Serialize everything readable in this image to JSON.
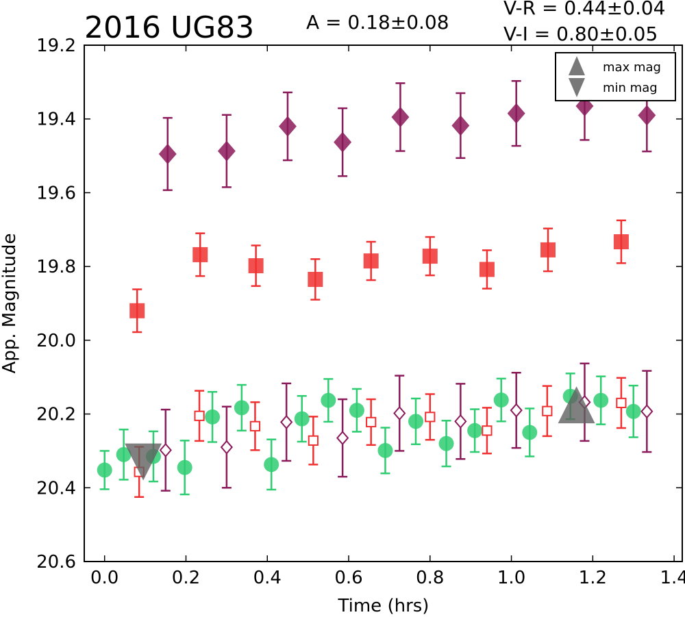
{
  "chart_data": {
    "type": "scatter",
    "title": "2016 UG83",
    "amplitude_label": "A  = 0.18±0.08",
    "color_labels": [
      "V-R = 0.44±0.04",
      "V-I  = 0.80±0.05"
    ],
    "xlabel": "Time (hrs)",
    "ylabel": "App. Magnitude",
    "xlim": [
      -0.05,
      1.42
    ],
    "ylim": [
      20.6,
      19.2
    ],
    "y_inverted": true,
    "xticks": [
      "0.0",
      "0.2",
      "0.4",
      "0.6",
      "0.8",
      "1.0",
      "1.2",
      "1.4"
    ],
    "xtick_values": [
      0.0,
      0.2,
      0.4,
      0.6,
      0.8,
      1.0,
      1.2,
      1.4
    ],
    "yticks": [
      "19.2",
      "19.4",
      "19.6",
      "19.8",
      "20.0",
      "20.2",
      "20.4",
      "20.6"
    ],
    "ytick_values": [
      19.2,
      19.4,
      19.6,
      19.8,
      20.0,
      20.2,
      20.4,
      20.6
    ],
    "grid": false,
    "legend": {
      "placement": "top-right",
      "entries": [
        {
          "label": "max mag",
          "marker": "triangle-up"
        },
        {
          "label": "min mag",
          "marker": "triangle-down"
        }
      ]
    },
    "colors": {
      "green": "#2ecc71",
      "red": "#f03030",
      "purple": "#8b1a5b",
      "extrema": "#606060"
    },
    "series": [
      {
        "marker": "diamond-filled",
        "color": "#8b1a5b",
        "points": [
          {
            "x": 0.155,
            "y": 19.495,
            "err": 0.098
          },
          {
            "x": 0.3,
            "y": 19.487,
            "err": 0.098
          },
          {
            "x": 0.45,
            "y": 19.42,
            "err": 0.092
          },
          {
            "x": 0.585,
            "y": 19.463,
            "err": 0.092
          },
          {
            "x": 0.727,
            "y": 19.395,
            "err": 0.092
          },
          {
            "x": 0.875,
            "y": 19.418,
            "err": 0.088
          },
          {
            "x": 1.012,
            "y": 19.385,
            "err": 0.088
          },
          {
            "x": 1.18,
            "y": 19.365,
            "err": 0.092
          },
          {
            "x": 1.333,
            "y": 19.39,
            "err": 0.098
          }
        ]
      },
      {
        "marker": "square-filled",
        "color": "#f03030",
        "points": [
          {
            "x": 0.08,
            "y": 19.92,
            "err": 0.058
          },
          {
            "x": 0.235,
            "y": 19.768,
            "err": 0.058
          },
          {
            "x": 0.372,
            "y": 19.798,
            "err": 0.055
          },
          {
            "x": 0.518,
            "y": 19.835,
            "err": 0.055
          },
          {
            "x": 0.655,
            "y": 19.785,
            "err": 0.052
          },
          {
            "x": 0.8,
            "y": 19.772,
            "err": 0.052
          },
          {
            "x": 0.94,
            "y": 19.808,
            "err": 0.052
          },
          {
            "x": 1.09,
            "y": 19.755,
            "err": 0.058
          },
          {
            "x": 1.27,
            "y": 19.733,
            "err": 0.058
          }
        ]
      },
      {
        "marker": "circle-filled",
        "color": "#2ecc71",
        "points": [
          {
            "x": 0.0,
            "y": 20.352,
            "err": 0.052
          },
          {
            "x": 0.047,
            "y": 20.31,
            "err": 0.068
          },
          {
            "x": 0.12,
            "y": 20.315,
            "err": 0.068
          },
          {
            "x": 0.197,
            "y": 20.345,
            "err": 0.073
          },
          {
            "x": 0.265,
            "y": 20.208,
            "err": 0.068
          },
          {
            "x": 0.337,
            "y": 20.183,
            "err": 0.062
          },
          {
            "x": 0.41,
            "y": 20.337,
            "err": 0.068
          },
          {
            "x": 0.485,
            "y": 20.213,
            "err": 0.062
          },
          {
            "x": 0.55,
            "y": 20.163,
            "err": 0.058
          },
          {
            "x": 0.62,
            "y": 20.19,
            "err": 0.058
          },
          {
            "x": 0.69,
            "y": 20.299,
            "err": 0.062
          },
          {
            "x": 0.765,
            "y": 20.22,
            "err": 0.062
          },
          {
            "x": 0.84,
            "y": 20.28,
            "err": 0.062
          },
          {
            "x": 0.91,
            "y": 20.245,
            "err": 0.058
          },
          {
            "x": 0.975,
            "y": 20.162,
            "err": 0.058
          },
          {
            "x": 1.045,
            "y": 20.25,
            "err": 0.065
          },
          {
            "x": 1.145,
            "y": 20.152,
            "err": 0.062
          },
          {
            "x": 1.22,
            "y": 20.163,
            "err": 0.065
          },
          {
            "x": 1.3,
            "y": 20.193,
            "err": 0.07
          }
        ]
      },
      {
        "marker": "square-open",
        "color": "#f03030",
        "points": [
          {
            "x": 0.085,
            "y": 20.357,
            "err": 0.068
          },
          {
            "x": 0.233,
            "y": 20.205,
            "err": 0.068
          },
          {
            "x": 0.37,
            "y": 20.233,
            "err": 0.065
          },
          {
            "x": 0.513,
            "y": 20.272,
            "err": 0.065
          },
          {
            "x": 0.655,
            "y": 20.222,
            "err": 0.062
          },
          {
            "x": 0.8,
            "y": 20.208,
            "err": 0.062
          },
          {
            "x": 0.94,
            "y": 20.245,
            "err": 0.062
          },
          {
            "x": 1.088,
            "y": 20.192,
            "err": 0.068
          },
          {
            "x": 1.27,
            "y": 20.17,
            "err": 0.068
          }
        ]
      },
      {
        "marker": "diamond-open",
        "color": "#8b1a5b",
        "points": [
          {
            "x": 0.15,
            "y": 20.298,
            "err": 0.11
          },
          {
            "x": 0.3,
            "y": 20.29,
            "err": 0.11
          },
          {
            "x": 0.447,
            "y": 20.222,
            "err": 0.105
          },
          {
            "x": 0.585,
            "y": 20.265,
            "err": 0.105
          },
          {
            "x": 0.725,
            "y": 20.198,
            "err": 0.102
          },
          {
            "x": 0.875,
            "y": 20.22,
            "err": 0.102
          },
          {
            "x": 1.012,
            "y": 20.19,
            "err": 0.102
          },
          {
            "x": 1.18,
            "y": 20.168,
            "err": 0.105
          },
          {
            "x": 1.333,
            "y": 20.193,
            "err": 0.11
          }
        ]
      }
    ],
    "extrema": [
      {
        "kind": "min mag",
        "marker": "triangle-down",
        "x": 0.095,
        "y": 20.33
      },
      {
        "kind": "max mag",
        "marker": "triangle-up",
        "x": 1.16,
        "y": 20.175
      }
    ]
  }
}
